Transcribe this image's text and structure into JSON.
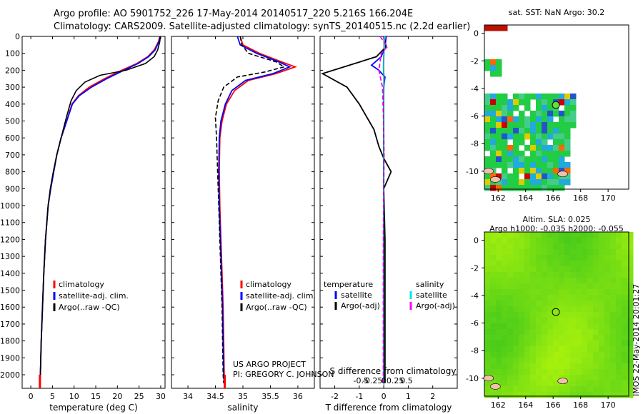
{
  "header": {
    "title_line1": "Argo profile: AO 5901752_226 17-May-2014 20140517_220 5.216S 166.204E",
    "title_line2": "Climatology: CARS2009. Satellite-adjusted climatology: synTS_20140515.nc (2.2d earlier)"
  },
  "colors": {
    "climatology": "#ff0000",
    "satellite": "#0000ff",
    "argo": "#000000",
    "salinity_satellite": "#00e5ee",
    "salinity_argo": "#ff00ff"
  },
  "chart_data": [
    {
      "id": "temperature",
      "type": "line",
      "xlabel": "temperature (deg C)",
      "ylabel": "",
      "xlim": [
        -2,
        31
      ],
      "ylim": [
        2080,
        0
      ],
      "xticks": [
        0,
        5,
        10,
        15,
        20,
        25,
        30
      ],
      "yticks": [
        0,
        100,
        200,
        300,
        400,
        500,
        600,
        700,
        800,
        900,
        1000,
        1100,
        1200,
        1300,
        1400,
        1500,
        1600,
        1700,
        1800,
        1900,
        2000
      ],
      "legend": [
        "climatology",
        "satellite-adj. clim.",
        "Argo(..raw -QC)"
      ],
      "series": [
        {
          "name": "climatology",
          "color": "#ff0000",
          "x": [
            29.8,
            29.5,
            28.5,
            27,
            24.5,
            21,
            17,
            13.5,
            11,
            9.5,
            8.3,
            7,
            6,
            5.3,
            4.6,
            4,
            3.4,
            3,
            2.7,
            2.4,
            2.2,
            2.1
          ],
          "y": [
            0,
            30,
            80,
            120,
            160,
            200,
            250,
            300,
            350,
            400,
            500,
            600,
            700,
            800,
            900,
            1000,
            1200,
            1400,
            1600,
            1800,
            2000,
            2050
          ]
        },
        {
          "name": "satellite-adj. clim.",
          "color": "#0000ff",
          "x": [
            29.9,
            29.6,
            28.7,
            27.2,
            24.8,
            21.5,
            17.5,
            14,
            11.2,
            9.6,
            8.3,
            7,
            6,
            5.3,
            4.6,
            4,
            3.4,
            3,
            2.7,
            2.4,
            2.2,
            2.1
          ],
          "y": [
            0,
            30,
            80,
            120,
            160,
            200,
            250,
            300,
            350,
            400,
            500,
            600,
            700,
            800,
            900,
            1000,
            1200,
            1400,
            1600,
            1800,
            2000,
            2050
          ]
        },
        {
          "name": "Argo(..raw -QC)",
          "color": "#000000",
          "x": [
            29.9,
            29.8,
            29.3,
            28.5,
            26.5,
            22,
            16,
            12.5,
            10.5,
            9.3,
            8.2,
            7,
            6,
            5.2,
            4.5,
            4,
            3.4,
            3,
            2.7,
            2.4,
            2.2,
            2.1
          ],
          "y": [
            0,
            30,
            80,
            120,
            160,
            200,
            230,
            270,
            320,
            380,
            480,
            600,
            700,
            800,
            900,
            1000,
            1200,
            1400,
            1600,
            1800,
            2000,
            2050
          ]
        }
      ]
    },
    {
      "id": "salinity",
      "type": "line",
      "xlabel": "salinity",
      "ylabel": "",
      "xlim": [
        33.7,
        36.3
      ],
      "ylim": [
        2080,
        0
      ],
      "xticks": [
        34,
        34.5,
        35,
        35.5,
        36
      ],
      "legend": [
        "climatology",
        "satellite-adj. clim.",
        "Argo(..raw -QC)"
      ],
      "series": [
        {
          "name": "climatology",
          "color": "#ff0000",
          "x": [
            34.95,
            35.0,
            35.3,
            35.7,
            35.95,
            35.6,
            35.1,
            34.85,
            34.7,
            34.62,
            34.58,
            34.57,
            34.58,
            34.6,
            34.62,
            34.64,
            34.65,
            34.66,
            34.67
          ],
          "y": [
            0,
            50,
            100,
            150,
            180,
            220,
            260,
            320,
            400,
            500,
            600,
            800,
            1000,
            1200,
            1400,
            1600,
            1800,
            2000,
            2050
          ]
        },
        {
          "name": "satellite-adj. clim.",
          "color": "#0000ff",
          "x": [
            34.9,
            34.95,
            35.25,
            35.65,
            35.85,
            35.55,
            35.05,
            34.8,
            34.68,
            34.6,
            34.57,
            34.56,
            34.57,
            34.59,
            34.61,
            34.63,
            34.64,
            34.65,
            34.66
          ],
          "y": [
            0,
            50,
            100,
            150,
            180,
            220,
            260,
            320,
            400,
            500,
            600,
            800,
            1000,
            1200,
            1400,
            1600,
            1800,
            2000,
            2050
          ]
        },
        {
          "name": "Argo(..raw -QC)",
          "color": "#000000",
          "x": [
            34.95,
            34.98,
            35.1,
            35.6,
            35.75,
            35.4,
            34.9,
            34.65,
            34.55,
            34.5,
            34.52,
            34.54,
            34.56,
            34.58,
            34.6,
            34.62,
            34.63,
            34.64,
            34.65
          ],
          "y": [
            0,
            50,
            100,
            150,
            180,
            210,
            240,
            300,
            380,
            480,
            600,
            800,
            1000,
            1200,
            1400,
            1600,
            1800,
            2000,
            2050
          ]
        }
      ],
      "annotations": [
        "US ARGO PROJECT",
        "PI: GREGORY C. JOHNSON"
      ]
    },
    {
      "id": "difference",
      "type": "line",
      "xlabel": "T difference from climatology",
      "xlabel_top": "S difference from climatology",
      "xlim": [
        -2.6,
        3
      ],
      "ylim": [
        2080,
        0
      ],
      "xticks": [
        -2,
        -1,
        0,
        1,
        2
      ],
      "xticks_top": [
        -0.5,
        -0.25,
        0,
        0.25,
        0.5
      ],
      "legend_title_left": "temperature",
      "legend_title_right": "salinity",
      "legend": [
        "satellite",
        "Argo(-adj)",
        "satellite",
        "Argo(-adj)"
      ],
      "series": [
        {
          "name": "T satellite",
          "color": "#0000ff",
          "x": [
            0.1,
            0.05,
            -0.1,
            -0.5,
            -0.2,
            0.05,
            0.0,
            0.0,
            0.0,
            0.0,
            0.0,
            0.0,
            0.0,
            0.0
          ],
          "y": [
            0,
            60,
            120,
            170,
            200,
            240,
            300,
            400,
            600,
            800,
            1000,
            1500,
            1900,
            2050
          ]
        },
        {
          "name": "T Argo(-adj)",
          "color": "#000000",
          "x": [
            0.0,
            0.1,
            -0.3,
            -2.5,
            -1.5,
            -1.0,
            -0.4,
            -0.2,
            0.0,
            0.3,
            0.0,
            0.05,
            0.05,
            0.05
          ],
          "y": [
            0,
            60,
            120,
            220,
            300,
            400,
            550,
            650,
            720,
            800,
            900,
            1200,
            1800,
            2050
          ]
        },
        {
          "name": "S satellite",
          "color": "#00e5ee",
          "x": [
            0.02,
            0.03,
            0.0,
            -0.02,
            0.01,
            0.0,
            0.0,
            0.0,
            0.0,
            0.0,
            0.0
          ],
          "y": [
            0,
            60,
            120,
            180,
            250,
            350,
            500,
            800,
            1200,
            1800,
            2050
          ]
        },
        {
          "name": "S Argo(-adj)",
          "color": "#ff00ff",
          "x": [
            -0.15,
            0.15,
            -0.1,
            -0.2,
            -0.05,
            -0.02,
            0.0,
            0.01,
            0.0,
            -0.02,
            -0.02,
            -0.02,
            -0.02
          ],
          "y": [
            0,
            60,
            100,
            200,
            300,
            450,
            550,
            700,
            900,
            1200,
            1500,
            1900,
            2050
          ]
        }
      ]
    },
    {
      "id": "sst-map",
      "type": "heatmap",
      "title": "sat. SST: NaN Argo: 30.2",
      "xlim": [
        161,
        171.5
      ],
      "ylim": [
        -11.3,
        0.6
      ],
      "xticks": [
        162,
        164,
        166,
        168,
        170
      ],
      "yticks": [
        0,
        -2,
        -4,
        -6,
        -8,
        -10
      ],
      "argo_position": [
        166.2,
        -5.2
      ]
    },
    {
      "id": "sla-map",
      "type": "heatmap",
      "title": "Altim. SLA: 0.025",
      "subtitle": "Argo h1000: -0.035 h2000: -0.055",
      "xlim": [
        161,
        171.5
      ],
      "ylim": [
        -11.3,
        0.6
      ],
      "xticks": [
        162,
        164,
        166,
        168,
        170
      ],
      "yticks": [
        0,
        -2,
        -4,
        -6,
        -8,
        -10
      ],
      "argo_position": [
        166.2,
        -5.2
      ]
    }
  ],
  "footer": {
    "timestamp": "IMOS 22-May-2014 20:01:27"
  }
}
